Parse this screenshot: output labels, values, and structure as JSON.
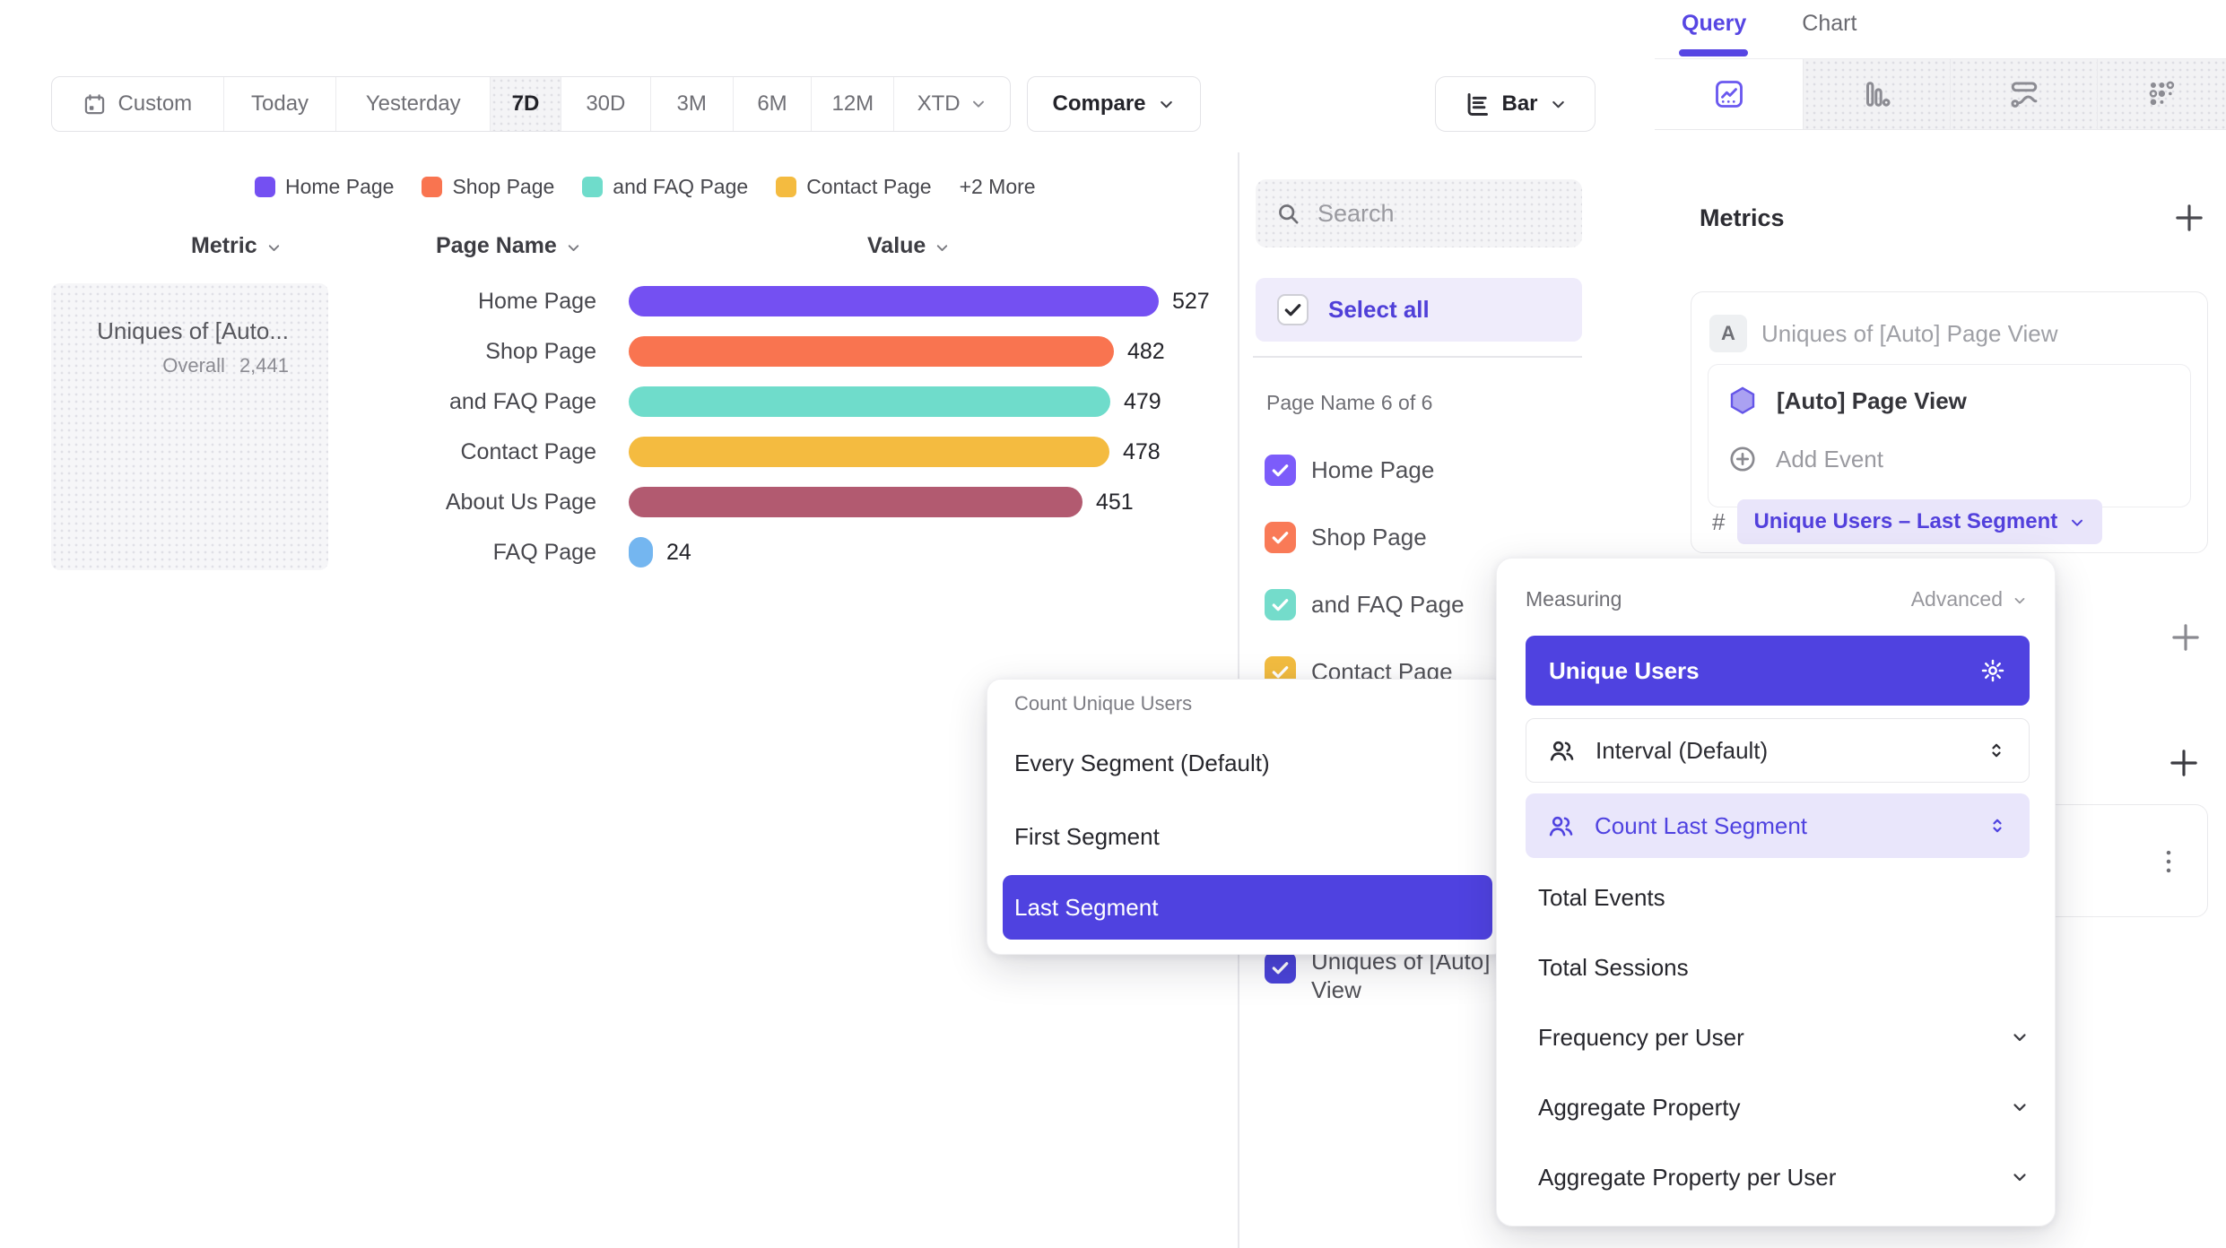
{
  "colors": {
    "accent": "#4f42e0",
    "accent_light": "#e9e6fb",
    "purple": "#7450F2",
    "orange": "#F97450",
    "teal": "#6FDCCB",
    "yellow": "#F4BB40",
    "maroon": "#B25A70",
    "blue": "#74B6F0"
  },
  "toolbar": {
    "date_ranges": [
      {
        "label": "Custom",
        "icon": "calendar-icon"
      },
      {
        "label": "Today"
      },
      {
        "label": "Yesterday"
      },
      {
        "label": "7D"
      },
      {
        "label": "30D"
      },
      {
        "label": "3M"
      },
      {
        "label": "6M"
      },
      {
        "label": "12M"
      },
      {
        "label": "XTD",
        "chevron": true
      }
    ],
    "active_range": "7D",
    "compare_label": "Compare",
    "chart_style_label": "Bar"
  },
  "legend": {
    "items": [
      {
        "label": "Home Page",
        "color": "#7450F2"
      },
      {
        "label": "Shop Page",
        "color": "#F97450"
      },
      {
        "label": "and FAQ Page",
        "color": "#6FDCCB"
      },
      {
        "label": "Contact Page",
        "color": "#F4BB40"
      }
    ],
    "more_label": "+2 More"
  },
  "table": {
    "headers": [
      "Metric",
      "Page Name",
      "Value"
    ]
  },
  "metric_card": {
    "title": "Uniques of [Auto...",
    "overall_label": "Overall",
    "overall_value": "2,441"
  },
  "chart_data": {
    "type": "bar",
    "orientation": "horizontal",
    "metric": "Uniques of [Auto] Page View",
    "overall_total": 2441,
    "date_range": "7D",
    "categories": [
      "Home Page",
      "Shop Page",
      "and FAQ Page",
      "Contact Page",
      "About Us Page",
      "FAQ Page"
    ],
    "values": [
      527,
      482,
      479,
      478,
      451,
      24
    ],
    "colors": [
      "#7450F2",
      "#F97450",
      "#6FDCCB",
      "#F4BB40",
      "#B25A70",
      "#74B6F0"
    ],
    "xlabel": "Value",
    "ylabel": "Page Name",
    "xlim": [
      0,
      560
    ],
    "grid": false,
    "legend_position": "top",
    "legend_entries": [
      "Home Page",
      "Shop Page",
      "and FAQ Page",
      "Contact Page",
      "+2 More"
    ]
  },
  "filter_panel": {
    "search_placeholder": "Search",
    "select_all_label": "Select all",
    "group_label": "Page Name 6 of 6",
    "items": [
      {
        "label": "Home Page",
        "color": "#7C5CFA",
        "checked": true
      },
      {
        "label": "Shop Page",
        "color": "#F97A57",
        "checked": true
      },
      {
        "label": "and FAQ Page",
        "color": "#74DCCB",
        "checked": true
      },
      {
        "label": "Contact Page",
        "color": "#F2BC40",
        "checked": true
      }
    ],
    "extra_item": {
      "label": "Uniques of [Auto] Page View",
      "color": "#4A43D8",
      "checked": true
    }
  },
  "sidebar": {
    "tabs": [
      {
        "label": "Query",
        "active": true
      },
      {
        "label": "Chart",
        "active": false
      }
    ],
    "chart_type_tabs": [
      {
        "icon": "insights-icon",
        "active": true
      },
      {
        "icon": "bar-chart-icon",
        "active": false
      },
      {
        "icon": "flow-icon",
        "active": false
      },
      {
        "icon": "retention-icon",
        "active": false
      }
    ],
    "metrics_title": "Metrics",
    "metric": {
      "badge": "A",
      "label": "Uniques of [Auto] Page View",
      "event": "[Auto] Page View",
      "add_event_label": "Add Event",
      "measure_prefix": "#",
      "measurement": "Unique Users – Last Segment"
    }
  },
  "count_menu": {
    "title": "Count Unique Users",
    "options": [
      "Every Segment (Default)",
      "First Segment",
      "Last Segment"
    ],
    "selected": "Last Segment"
  },
  "measuring_menu": {
    "title": "Measuring",
    "advanced_label": "Advanced",
    "selected_label": "Unique Users",
    "interval_label": "Interval (Default)",
    "count_label": "Count Last Segment",
    "options": [
      {
        "label": "Total Events",
        "expandable": false
      },
      {
        "label": "Total Sessions",
        "expandable": false
      },
      {
        "label": "Frequency per User",
        "expandable": true
      },
      {
        "label": "Aggregate Property",
        "expandable": true
      },
      {
        "label": "Aggregate Property per User",
        "expandable": true
      }
    ]
  }
}
